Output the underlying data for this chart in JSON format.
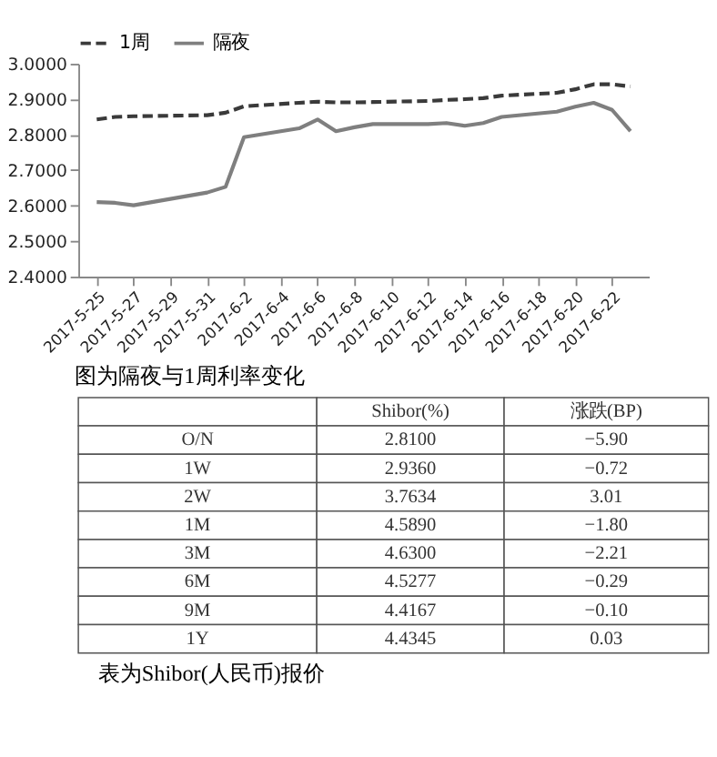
{
  "chart_data": [
    {
      "type": "line",
      "annotations": [
        "图为隔夜与1周利率变化"
      ],
      "x": [
        "2017-05-25",
        "2017-05-26",
        "2017-05-27",
        "2017-05-31",
        "2017-06-01",
        "2017-06-02",
        "2017-06-05",
        "2017-06-06",
        "2017-06-07",
        "2017-06-08",
        "2017-06-09",
        "2017-06-12",
        "2017-06-13",
        "2017-06-14",
        "2017-06-15",
        "2017-06-16",
        "2017-06-19",
        "2017-06-20",
        "2017-06-21",
        "2017-06-22",
        "2017-06-23"
      ],
      "series": [
        {
          "name": "1周",
          "color": "#3a3a3a",
          "line_style": "dashed",
          "marker": "none",
          "values": [
            2.843,
            2.85,
            2.852,
            2.855,
            2.862,
            2.88,
            2.89,
            2.893,
            2.891,
            2.891,
            2.892,
            2.895,
            2.898,
            2.9,
            2.903,
            2.91,
            2.918,
            2.928,
            2.942,
            2.942,
            2.936
          ]
        },
        {
          "name": "隔夜",
          "color": "#7f7f7f",
          "line_style": "solid",
          "marker": "none",
          "values": [
            2.61,
            2.608,
            2.601,
            2.637,
            2.653,
            2.793,
            2.818,
            2.843,
            2.81,
            2.821,
            2.83,
            2.83,
            2.833,
            2.825,
            2.833,
            2.85,
            2.865,
            2.879,
            2.89,
            2.87,
            2.81
          ]
        }
      ],
      "ylim": [
        2.4,
        3.0
      ],
      "yticks": [
        {
          "value": 2.4,
          "label": "2.4000"
        },
        {
          "value": 2.5,
          "label": "2.5000"
        },
        {
          "value": 2.6,
          "label": "2.6000"
        },
        {
          "value": 2.7,
          "label": "2.7000"
        },
        {
          "value": 2.8,
          "label": "2.8000"
        },
        {
          "value": 2.9,
          "label": "2.9000"
        },
        {
          "value": 3.0,
          "label": "3.0000"
        }
      ],
      "xlim": [
        "2017-05-24",
        "2017-06-24"
      ],
      "xticks": [
        {
          "value": "2017-05-25",
          "label": "2017-5-25"
        },
        {
          "value": "2017-05-27",
          "label": "2017-5-27"
        },
        {
          "value": "2017-05-29",
          "label": "2017-5-29"
        },
        {
          "value": "2017-05-31",
          "label": "2017-5-31"
        },
        {
          "value": "2017-06-02",
          "label": "2017-6-2"
        },
        {
          "value": "2017-06-04",
          "label": "2017-6-4"
        },
        {
          "value": "2017-06-06",
          "label": "2017-6-6"
        },
        {
          "value": "2017-06-08",
          "label": "2017-6-8"
        },
        {
          "value": "2017-06-10",
          "label": "2017-6-10"
        },
        {
          "value": "2017-06-12",
          "label": "2017-6-12"
        },
        {
          "value": "2017-06-14",
          "label": "2017-6-14"
        },
        {
          "value": "2017-06-16",
          "label": "2017-6-16"
        },
        {
          "value": "2017-06-18",
          "label": "2017-6-18"
        },
        {
          "value": "2017-06-20",
          "label": "2017-6-20"
        },
        {
          "value": "2017-06-22",
          "label": "2017-6-22"
        }
      ],
      "grid": false,
      "legend": "top"
    },
    {
      "type": "other",
      "annotations": [
        "表为Shibor(人民币)报价"
      ],
      "categories": [
        "O/N",
        "1W",
        "2W",
        "1M",
        "3M",
        "6M",
        "9M",
        "1Y"
      ],
      "series": [
        {
          "name": "Shibor(%)",
          "values": [
            2.81,
            2.936,
            3.7634,
            4.589,
            4.63,
            4.5277,
            4.4167,
            4.4345
          ],
          "value_labels": [
            "2.8100",
            "2.9360",
            "3.7634",
            "4.5890",
            "4.6300",
            "4.5277",
            "4.4167",
            "4.4345"
          ]
        },
        {
          "name": "涨跌(BP)",
          "values": [
            -5.9,
            -0.72,
            3.01,
            -1.8,
            -2.21,
            -0.29,
            -0.1,
            0.03
          ],
          "value_labels": [
            "−5.90",
            "−0.72",
            "3.01",
            "−1.80",
            "−2.21",
            "−0.29",
            "−0.10",
            "0.03"
          ]
        }
      ]
    }
  ]
}
